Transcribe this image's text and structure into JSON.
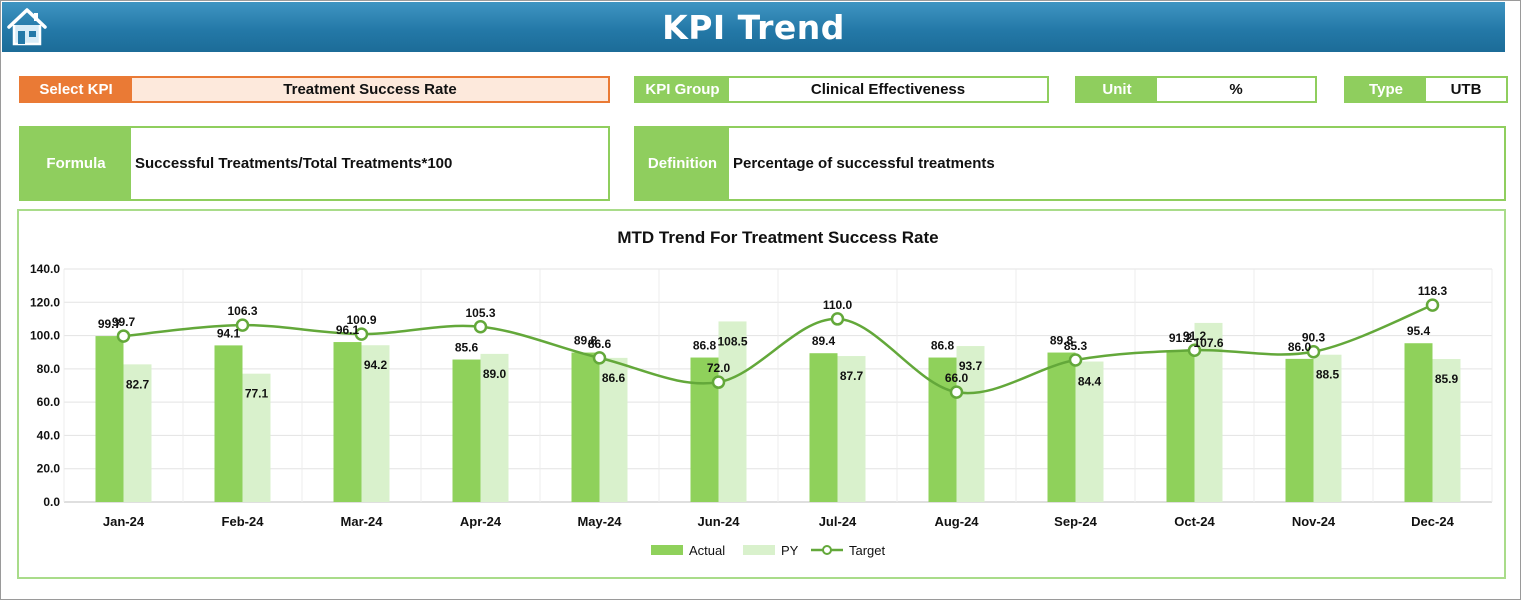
{
  "header": {
    "title": "KPI Trend",
    "home_icon": "home-icon"
  },
  "fields": {
    "select_kpi": {
      "label": "Select KPI",
      "value": "Treatment Success Rate"
    },
    "kpi_group": {
      "label": "KPI Group",
      "value": "Clinical Effectiveness"
    },
    "unit": {
      "label": "Unit",
      "value": "%"
    },
    "type": {
      "label": "Type",
      "value": "UTB"
    },
    "formula": {
      "label": "Formula",
      "value": "Successful Treatments/Total Treatments*100"
    },
    "definition": {
      "label": "Definition",
      "value": "Percentage of successful treatments"
    }
  },
  "colors": {
    "accent_orange": "#ea7a35",
    "accent_green": "#8fce5e",
    "actual": "#8fd15b",
    "py": "#d9f1cc",
    "target": "#63a83a",
    "header_blue": "#2479a8"
  },
  "chart_data": {
    "type": "bar",
    "title": "MTD Trend For Treatment Success Rate",
    "categories": [
      "Jan-24",
      "Feb-24",
      "Mar-24",
      "Apr-24",
      "May-24",
      "Jun-24",
      "Jul-24",
      "Aug-24",
      "Sep-24",
      "Oct-24",
      "Nov-24",
      "Dec-24"
    ],
    "series": [
      {
        "name": "Actual",
        "kind": "bar",
        "values": [
          99.7,
          94.1,
          96.1,
          85.6,
          89.8,
          86.8,
          89.4,
          86.8,
          89.8,
          91.2,
          86.0,
          95.4
        ]
      },
      {
        "name": "PY",
        "kind": "bar",
        "values": [
          82.7,
          77.1,
          94.2,
          89.0,
          86.6,
          108.5,
          87.7,
          93.7,
          84.4,
          107.6,
          88.5,
          85.9
        ]
      },
      {
        "name": "Target",
        "kind": "line",
        "smooth": true,
        "values": [
          99.7,
          106.3,
          100.9,
          105.3,
          86.6,
          72.0,
          110.0,
          66.0,
          85.3,
          91.2,
          90.3,
          118.3
        ]
      }
    ],
    "ylim": [
      0,
      140
    ],
    "yticks": [
      "0.0",
      "20.0",
      "40.0",
      "60.0",
      "80.0",
      "100.0",
      "120.0",
      "140.0"
    ],
    "grid": true,
    "legend": "bottom",
    "decimals": 1
  }
}
